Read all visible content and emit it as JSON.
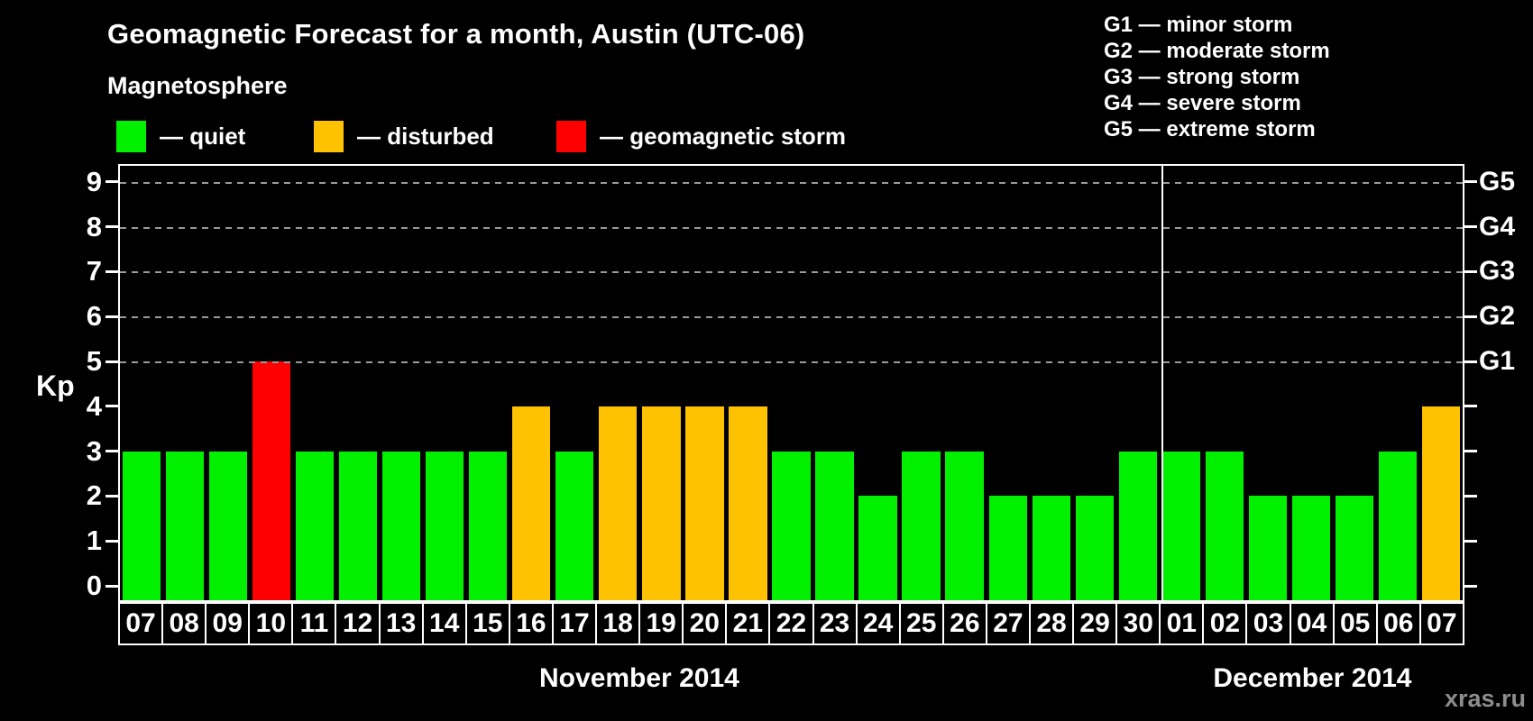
{
  "header": {
    "title": "Geomagnetic Forecast for a month, Austin (UTC-06)",
    "subtitle": "Magnetosphere",
    "legend": [
      {
        "label": "— quiet",
        "status": "quiet"
      },
      {
        "label": "— disturbed",
        "status": "disturbed"
      },
      {
        "label": "— geomagnetic storm",
        "status": "storm"
      }
    ],
    "g_scale_legend": [
      "G1 — minor storm",
      "G2 — moderate storm",
      "G3 — strong storm",
      "G4 — severe storm",
      "G5 — extreme storm"
    ]
  },
  "colors": {
    "quiet": "#00f000",
    "disturbed": "#ffc200",
    "storm": "#ff0000",
    "background": "#000000",
    "text": "#ffffff",
    "grid": "#9a9a9a",
    "watermark": "#8d8d8d"
  },
  "watermark": "xras.ru",
  "chart_data": {
    "type": "bar",
    "title": "Geomagnetic Forecast for a month, Austin (UTC-06)",
    "ylabel": "Kp",
    "xlabel": "",
    "ylim": [
      0,
      9
    ],
    "yticks": [
      0,
      1,
      2,
      3,
      4,
      5,
      6,
      7,
      8,
      9
    ],
    "gridlines_at": [
      5,
      6,
      7,
      8,
      9
    ],
    "grid": "dashed horizontal at G-storm levels only",
    "legend_position": "top",
    "right_axis_labels": [
      {
        "label": "G1",
        "kp": 5
      },
      {
        "label": "G2",
        "kp": 6
      },
      {
        "label": "G3",
        "kp": 7
      },
      {
        "label": "G4",
        "kp": 8
      },
      {
        "label": "G5",
        "kp": 9
      }
    ],
    "months": [
      {
        "name": "November 2014",
        "days": 24
      },
      {
        "name": "December 2014",
        "days": 7
      }
    ],
    "categories": [
      "07",
      "08",
      "09",
      "10",
      "11",
      "12",
      "13",
      "14",
      "15",
      "16",
      "17",
      "18",
      "19",
      "20",
      "21",
      "22",
      "23",
      "24",
      "25",
      "26",
      "27",
      "28",
      "29",
      "30",
      "01",
      "02",
      "03",
      "04",
      "05",
      "06",
      "07"
    ],
    "values": [
      3,
      3,
      3,
      5,
      3,
      3,
      3,
      3,
      3,
      4,
      3,
      4,
      4,
      4,
      4,
      3,
      3,
      2,
      3,
      3,
      2,
      2,
      2,
      3,
      3,
      3,
      2,
      2,
      2,
      3,
      4
    ],
    "statuses": [
      "quiet",
      "quiet",
      "quiet",
      "storm",
      "quiet",
      "quiet",
      "quiet",
      "quiet",
      "quiet",
      "disturbed",
      "quiet",
      "disturbed",
      "disturbed",
      "disturbed",
      "disturbed",
      "quiet",
      "quiet",
      "quiet",
      "quiet",
      "quiet",
      "quiet",
      "quiet",
      "quiet",
      "quiet",
      "quiet",
      "quiet",
      "quiet",
      "quiet",
      "quiet",
      "quiet",
      "disturbed"
    ]
  }
}
